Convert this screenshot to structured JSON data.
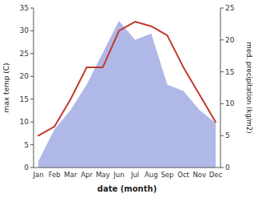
{
  "chart_data": {
    "type": "line",
    "categories": [
      "Jan",
      "Feb",
      "Mar",
      "Apr",
      "May",
      "Jun",
      "Jul",
      "Aug",
      "Sep",
      "Oct",
      "Nov",
      "Dec"
    ],
    "series": [
      {
        "type": "area",
        "axis": "y2",
        "color": "#b0b8e8",
        "values": [
          1,
          6,
          9,
          13,
          18,
          23,
          20,
          21,
          13,
          12,
          9,
          7
        ]
      },
      {
        "type": "line",
        "color": "#c0392b",
        "values": [
          7,
          9,
          15,
          22,
          22,
          30,
          32,
          31,
          29,
          22,
          16,
          10
        ]
      }
    ],
    "xlabel": "date (month)",
    "ylabel": "max temp (C)",
    "y2label": "med. precipitation (kg/m2)",
    "ylim": [
      0,
      35
    ],
    "yticks": [
      0,
      5,
      10,
      15,
      20,
      25,
      30,
      35
    ],
    "y2lim": [
      0,
      25
    ],
    "y2ticks": [
      0,
      5,
      10,
      15,
      20,
      25
    ],
    "grid": false
  }
}
